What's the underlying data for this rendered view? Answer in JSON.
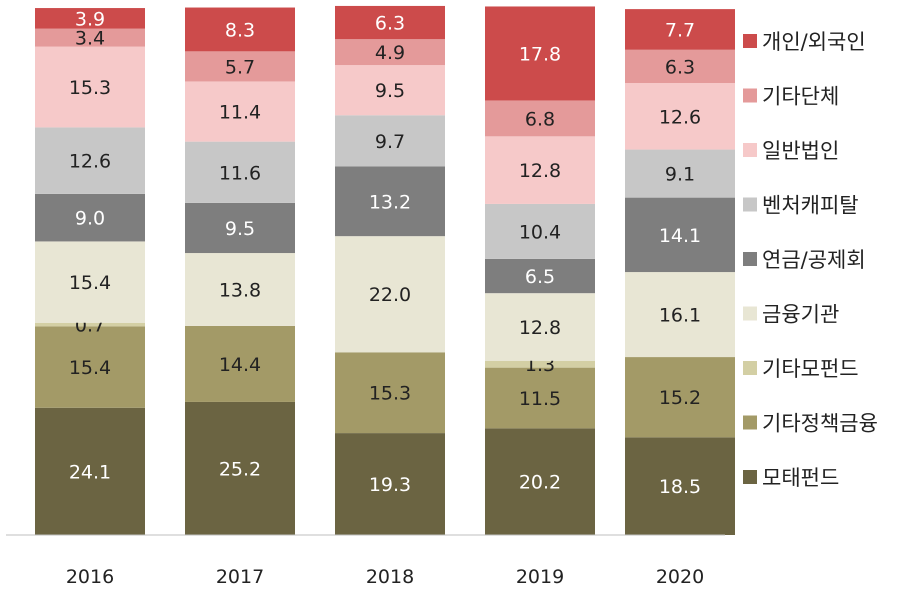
{
  "chart_data": {
    "type": "bar",
    "stacked": true,
    "categories": [
      "2016",
      "2017",
      "2018",
      "2019",
      "2020"
    ],
    "ylim": [
      0,
      100
    ],
    "grid": false,
    "legend_position": "right",
    "series": [
      {
        "name": "모태펀드",
        "color": "#6b6442",
        "label_color": "#ffffff",
        "values": [
          24.1,
          25.2,
          19.3,
          20.2,
          18.5
        ]
      },
      {
        "name": "기타정책금융",
        "color": "#a39a67",
        "label_color": "#222222",
        "values": [
          15.4,
          14.4,
          15.3,
          11.5,
          15.2
        ]
      },
      {
        "name": "기타모펀드",
        "color": "#d3cfa4",
        "label_color": "#222222",
        "values": [
          0.7,
          0.0,
          0.0,
          1.3,
          0.0
        ]
      },
      {
        "name": "금융기관",
        "color": "#e8e6d4",
        "label_color": "#222222",
        "values": [
          15.4,
          13.8,
          22.0,
          12.8,
          16.1
        ]
      },
      {
        "name": "연금/공제회",
        "color": "#7e7e7e",
        "label_color": "#ffffff",
        "values": [
          9.0,
          9.5,
          13.2,
          6.5,
          14.1
        ]
      },
      {
        "name": "벤처캐피탈",
        "color": "#c7c7c7",
        "label_color": "#222222",
        "values": [
          12.6,
          11.6,
          9.7,
          10.4,
          9.1
        ]
      },
      {
        "name": "일반법인",
        "color": "#f6c9c9",
        "label_color": "#222222",
        "values": [
          15.3,
          11.4,
          9.5,
          12.8,
          12.6
        ]
      },
      {
        "name": "기타단체",
        "color": "#e49a9a",
        "label_color": "#222222",
        "values": [
          3.4,
          5.7,
          4.9,
          6.8,
          6.3
        ]
      },
      {
        "name": "개인/외국인",
        "color": "#cc4b4b",
        "label_color": "#ffffff",
        "values": [
          3.9,
          8.3,
          6.3,
          17.8,
          7.7
        ]
      }
    ]
  }
}
